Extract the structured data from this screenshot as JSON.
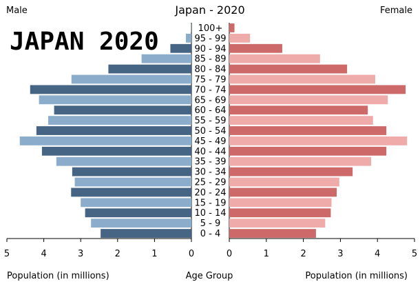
{
  "chart_data": {
    "type": "bar",
    "title": "Japan - 2020",
    "left_label": "Male",
    "right_label": "Female",
    "watermark": "JAPAN 2020",
    "xlabel_left": "Population (in millions)",
    "xlabel_center": "Age Group",
    "xlabel_right": "Population (in millions)",
    "xlim": [
      0,
      5
    ],
    "x_ticks": [
      "5",
      "4",
      "3",
      "2",
      "1",
      "0"
    ],
    "x_ticks_right": [
      "0",
      "1",
      "2",
      "3",
      "4",
      "5"
    ],
    "categories": [
      "100+",
      "95 - 99",
      "90 - 94",
      "85 - 89",
      "80 - 84",
      "75 - 79",
      "70 - 74",
      "65 - 69",
      "60 - 64",
      "55 - 59",
      "50 - 54",
      "45 - 49",
      "40 - 44",
      "35 - 39",
      "30 - 34",
      "25 - 29",
      "20 - 24",
      "15 - 19",
      "10 - 14",
      "5 - 9",
      "0 - 4"
    ],
    "series": [
      {
        "name": "Male",
        "values": [
          0.01,
          0.15,
          0.57,
          1.35,
          2.25,
          3.25,
          4.37,
          4.13,
          3.72,
          3.88,
          4.2,
          4.65,
          4.05,
          3.66,
          3.23,
          3.16,
          3.26,
          3.0,
          2.88,
          2.72,
          2.46
        ]
      },
      {
        "name": "Female",
        "values": [
          0.14,
          0.56,
          1.43,
          2.45,
          3.18,
          3.94,
          4.76,
          4.28,
          3.74,
          3.88,
          4.24,
          4.8,
          4.24,
          3.83,
          3.33,
          2.97,
          2.9,
          2.76,
          2.74,
          2.59,
          2.34
        ]
      }
    ],
    "colors": {
      "male_dark": "#466484",
      "male_light": "#8badcb",
      "female_dark": "#cd6969",
      "female_light": "#efaaaa",
      "axis": "#000000",
      "watermark": "#000000"
    },
    "grid": false,
    "legend": "none"
  }
}
